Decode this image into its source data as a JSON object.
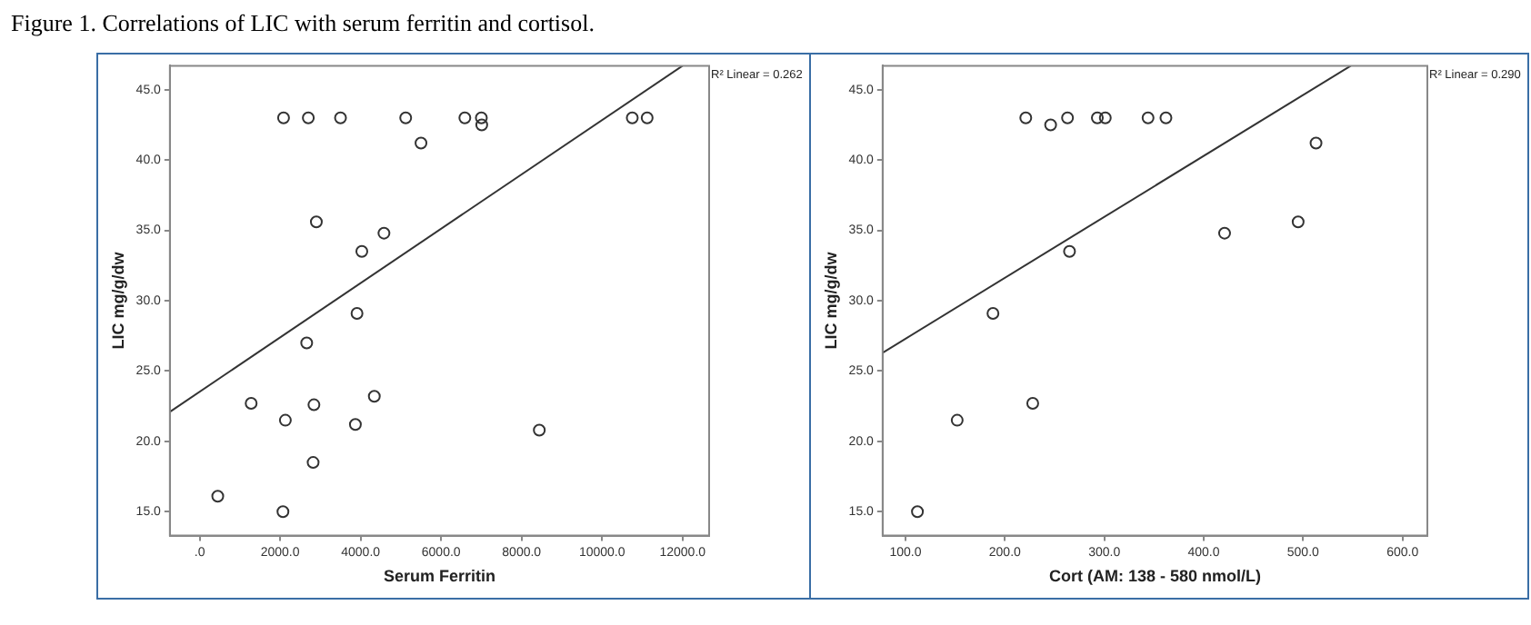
{
  "chart_data": [
    {
      "type": "scatter",
      "title": "Figure 1. Correlations of LIC with serum ferritin and cortisol.",
      "xlabel": "Serum Ferritin",
      "ylabel": "LIC mg/g/dw",
      "xlim": [
        -740,
        12660
      ],
      "ylim": [
        13.3,
        46.7
      ],
      "xticks": [
        {
          "value": 0,
          "label": ".0"
        },
        {
          "value": 2000,
          "label": "2000.0"
        },
        {
          "value": 4000,
          "label": "4000.0"
        },
        {
          "value": 6000,
          "label": "6000.0"
        },
        {
          "value": 8000,
          "label": "8000.0"
        },
        {
          "value": 10000,
          "label": "10000.0"
        },
        {
          "value": 12000,
          "label": "12000.0"
        }
      ],
      "yticks": [
        {
          "value": 15,
          "label": "15.0"
        },
        {
          "value": 20,
          "label": "20.0"
        },
        {
          "value": 25,
          "label": "25.0"
        },
        {
          "value": 30,
          "label": "30.0"
        },
        {
          "value": 35,
          "label": "35.0"
        },
        {
          "value": 40,
          "label": "40.0"
        },
        {
          "value": 45,
          "label": "45.0"
        }
      ],
      "grid": false,
      "legend": false,
      "annotations": [
        "R² Linear = 0.262"
      ],
      "series": [
        {
          "type": "scatter",
          "marker": "circle",
          "color": "#333333",
          "x": [
            2085,
            2700,
            3500,
            5120,
            6590,
            7000,
            7010,
            5500,
            10750,
            11120,
            2900,
            4580,
            4030,
            3910,
            2660,
            1280,
            2840,
            4340,
            2130,
            3870,
            8440,
            2820,
            450,
            2070
          ],
          "values": [
            43,
            43,
            43,
            43,
            43,
            43,
            42.5,
            41.2,
            43,
            43,
            35.6,
            34.8,
            33.5,
            29.1,
            27.0,
            22.7,
            22.6,
            23.2,
            21.5,
            21.2,
            20.8,
            18.5,
            16.1,
            15.0
          ]
        },
        {
          "type": "line",
          "marker": "none",
          "color": "#333333",
          "x": [
            -740,
            12000
          ],
          "values": [
            22.1,
            46.7
          ]
        }
      ]
    },
    {
      "type": "scatter",
      "xlabel": "Cort (AM: 138 - 580 nmol/L)",
      "ylabel": "LIC mg/g/dw",
      "xlim": [
        77,
        625
      ],
      "ylim": [
        13.3,
        46.7
      ],
      "xticks": [
        {
          "value": 100,
          "label": "100.0"
        },
        {
          "value": 200,
          "label": "200.0"
        },
        {
          "value": 300,
          "label": "300.0"
        },
        {
          "value": 400,
          "label": "400.0"
        },
        {
          "value": 500,
          "label": "500.0"
        },
        {
          "value": 600,
          "label": "600.0"
        }
      ],
      "yticks": [
        {
          "value": 15,
          "label": "15.0"
        },
        {
          "value": 20,
          "label": "20.0"
        },
        {
          "value": 25,
          "label": "25.0"
        },
        {
          "value": 30,
          "label": "30.0"
        },
        {
          "value": 35,
          "label": "35.0"
        },
        {
          "value": 40,
          "label": "40.0"
        },
        {
          "value": 45,
          "label": "45.0"
        }
      ],
      "grid": false,
      "legend": false,
      "annotations": [
        "R² Linear = 0.290"
      ],
      "series": [
        {
          "type": "scatter",
          "marker": "circle",
          "color": "#333333",
          "x": [
            221,
            263,
            293,
            301,
            344,
            362,
            246,
            513,
            495,
            421,
            265,
            188,
            228,
            152,
            112
          ],
          "values": [
            43,
            43,
            43,
            43,
            43,
            43,
            42.5,
            41.2,
            35.6,
            34.8,
            33.5,
            29.1,
            22.7,
            21.5,
            15.0
          ]
        },
        {
          "type": "line",
          "marker": "none",
          "color": "#333333",
          "x": [
            77,
            548
          ],
          "values": [
            26.3,
            46.7
          ]
        }
      ]
    }
  ]
}
